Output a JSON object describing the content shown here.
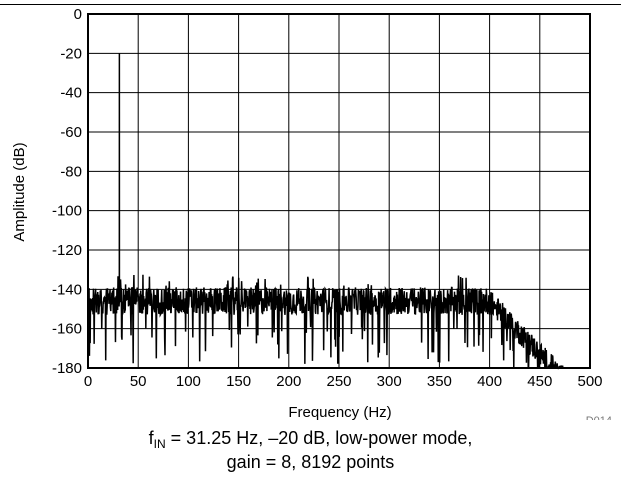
{
  "chart_data": {
    "type": "line",
    "title": "",
    "xlabel": "Frequency (Hz)",
    "ylabel": "Amplitude (dB)",
    "xlim": [
      0,
      500
    ],
    "ylim": [
      -180,
      0
    ],
    "xticks": [
      0,
      50,
      100,
      150,
      200,
      250,
      300,
      350,
      400,
      450,
      500
    ],
    "yticks": [
      0,
      -20,
      -40,
      -60,
      -80,
      -100,
      -120,
      -140,
      -160,
      -180
    ],
    "xtick_labels": [
      "0",
      "50",
      "100",
      "150",
      "200",
      "250",
      "300",
      "350",
      "400",
      "450",
      "500"
    ],
    "ytick_labels": [
      "0",
      "-20",
      "-40",
      "-60",
      "-80",
      "-100",
      "-120",
      "-140",
      "-160",
      "-180"
    ],
    "grid": true,
    "series": [
      {
        "color": "#000000",
        "peak": {
          "x": 31.25,
          "y": -20
        },
        "noise_floor": {
          "from": 0,
          "to": 400,
          "typical": -146,
          "max": -132,
          "min": -178
        },
        "rolloff": {
          "from": 400,
          "to": 475,
          "end": -180
        }
      }
    ],
    "figure_id": "D014",
    "caption": {
      "f_symbol": "f",
      "f_subscript": "IN",
      "line1_rest": " = 31.25 Hz, –20 dB, low-power mode,",
      "line2": "gain = 8, 8192 points"
    }
  }
}
